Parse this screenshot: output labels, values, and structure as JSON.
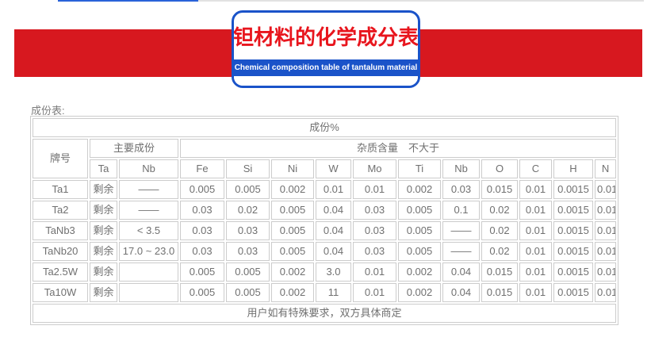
{
  "header": {
    "banner": {
      "title_cn": "钽材料的化学成分表",
      "title_en": "Chemical composition table of tantalum material",
      "border_color": "#1a53c9",
      "title_color": "#e8151d"
    },
    "ribbon_color": "#d7181f",
    "active_tab_color": "#2962d9"
  },
  "section_label": "成份表:",
  "composition_table": {
    "title": "成份%",
    "grade_header": "牌号",
    "main_group_header": "主要成份",
    "impurity_group_header": "杂质含量　不大于",
    "main_columns": [
      "Ta",
      "Nb"
    ],
    "impurity_columns": [
      "Fe",
      "Si",
      "Ni",
      "W",
      "Mo",
      "Ti",
      "Nb",
      "O",
      "C",
      "H",
      "N"
    ],
    "rows": [
      {
        "grade": "Ta1",
        "ta": "剩余",
        "nb": "——",
        "values": [
          "0.005",
          "0.005",
          "0.002",
          "0.01",
          "0.01",
          "0.002",
          "0.03",
          "0.015",
          "0.01",
          "0.0015",
          "0.01"
        ]
      },
      {
        "grade": "Ta2",
        "ta": "剩余",
        "nb": "——",
        "values": [
          "0.03",
          "0.02",
          "0.005",
          "0.04",
          "0.03",
          "0.005",
          "0.1",
          "0.02",
          "0.01",
          "0.0015",
          "0.01"
        ]
      },
      {
        "grade": "TaNb3",
        "ta": "剩余",
        "nb": "< 3.5",
        "values": [
          "0.03",
          "0.03",
          "0.005",
          "0.04",
          "0.03",
          "0.005",
          "——",
          "0.02",
          "0.01",
          "0.0015",
          "0.01"
        ]
      },
      {
        "grade": "TaNb20",
        "ta": "剩余",
        "nb": "17.0 ~ 23.0",
        "values": [
          "0.03",
          "0.03",
          "0.005",
          "0.04",
          "0.03",
          "0.005",
          "——",
          "0.02",
          "0.01",
          "0.0015",
          "0.01"
        ]
      },
      {
        "grade": "Ta2.5W",
        "ta": "剩余",
        "nb": "",
        "values": [
          "0.005",
          "0.005",
          "0.002",
          "3.0",
          "0.01",
          "0.002",
          "0.04",
          "0.015",
          "0.01",
          "0.0015",
          "0.01"
        ]
      },
      {
        "grade": "Ta10W",
        "ta": "剩余",
        "nb": "",
        "values": [
          "0.005",
          "0.005",
          "0.002",
          "11",
          "0.01",
          "0.002",
          "0.04",
          "0.015",
          "0.01",
          "0.0015",
          "0.01"
        ]
      }
    ],
    "footer_note": "用户如有特殊要求，双方具体商定"
  }
}
